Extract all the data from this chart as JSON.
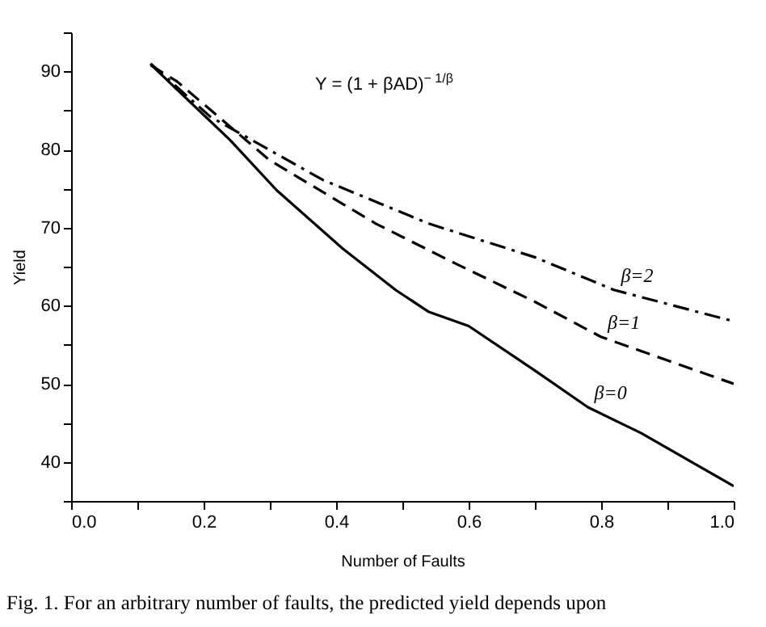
{
  "chart_data": {
    "type": "line",
    "xlabel": "Number of Faults",
    "ylabel": "Yield",
    "annotations": [
      "Y = (1 + βAD)$^{− 1/β}$",
      "Fig. 1. For an arbitrary number of faults, the predicted yield depends upon"
    ],
    "xlim": [
      0,
      1
    ],
    "ylim": [
      35,
      95
    ],
    "xticks": [
      {
        "value": 0,
        "label": "0.0"
      },
      {
        "value": 0.1,
        "label": null
      },
      {
        "value": 0.2,
        "label": "0.2"
      },
      {
        "value": 0.3,
        "label": null
      },
      {
        "value": 0.4,
        "label": "0.4"
      },
      {
        "value": 0.5,
        "label": null
      },
      {
        "value": 0.6,
        "label": "0.6"
      },
      {
        "value": 0.7,
        "label": null
      },
      {
        "value": 0.8,
        "label": "0.8"
      },
      {
        "value": 0.9,
        "label": null
      },
      {
        "value": 1,
        "label": "1.0"
      }
    ],
    "yticks": [
      {
        "value": 35,
        "label": null
      },
      40,
      {
        "value": 45,
        "label": null
      },
      50,
      {
        "value": 55,
        "label": null
      },
      60,
      {
        "value": 65,
        "label": null
      },
      70,
      {
        "value": 75,
        "label": null
      },
      80,
      {
        "value": 85,
        "label": null
      },
      90,
      {
        "value": 95,
        "label": null
      }
    ],
    "grid": false,
    "marker": "none",
    "series": [
      {
        "name": "β=2",
        "color": "#000000",
        "line_style": "dashdot",
        "x": [
          0.12,
          0.21,
          0.38,
          0.54,
          0.7,
          0.82,
          1.0
        ],
        "values": [
          91,
          84.2,
          76.1,
          70.5,
          66.2,
          62,
          58
        ]
      },
      {
        "name": "β=1",
        "color": "#000000",
        "line_style": "dashed",
        "x": [
          0.12,
          0.16,
          0.3,
          0.46,
          0.58,
          0.7,
          0.8,
          0.9,
          1.0
        ],
        "values": [
          90.8,
          88.7,
          78.6,
          70.5,
          65.4,
          60.5,
          56,
          53,
          50
        ]
      },
      {
        "name": "β=0",
        "color": "#000000",
        "line_style": "solid",
        "x": [
          0.12,
          0.24,
          0.31,
          0.41,
          0.49,
          0.54,
          0.6,
          0.7,
          0.78,
          0.86,
          1.0
        ],
        "values": [
          90.9,
          81.2,
          74.8,
          67.3,
          62,
          59.2,
          57.4,
          51.7,
          47,
          43.7,
          36.9
        ]
      }
    ]
  }
}
